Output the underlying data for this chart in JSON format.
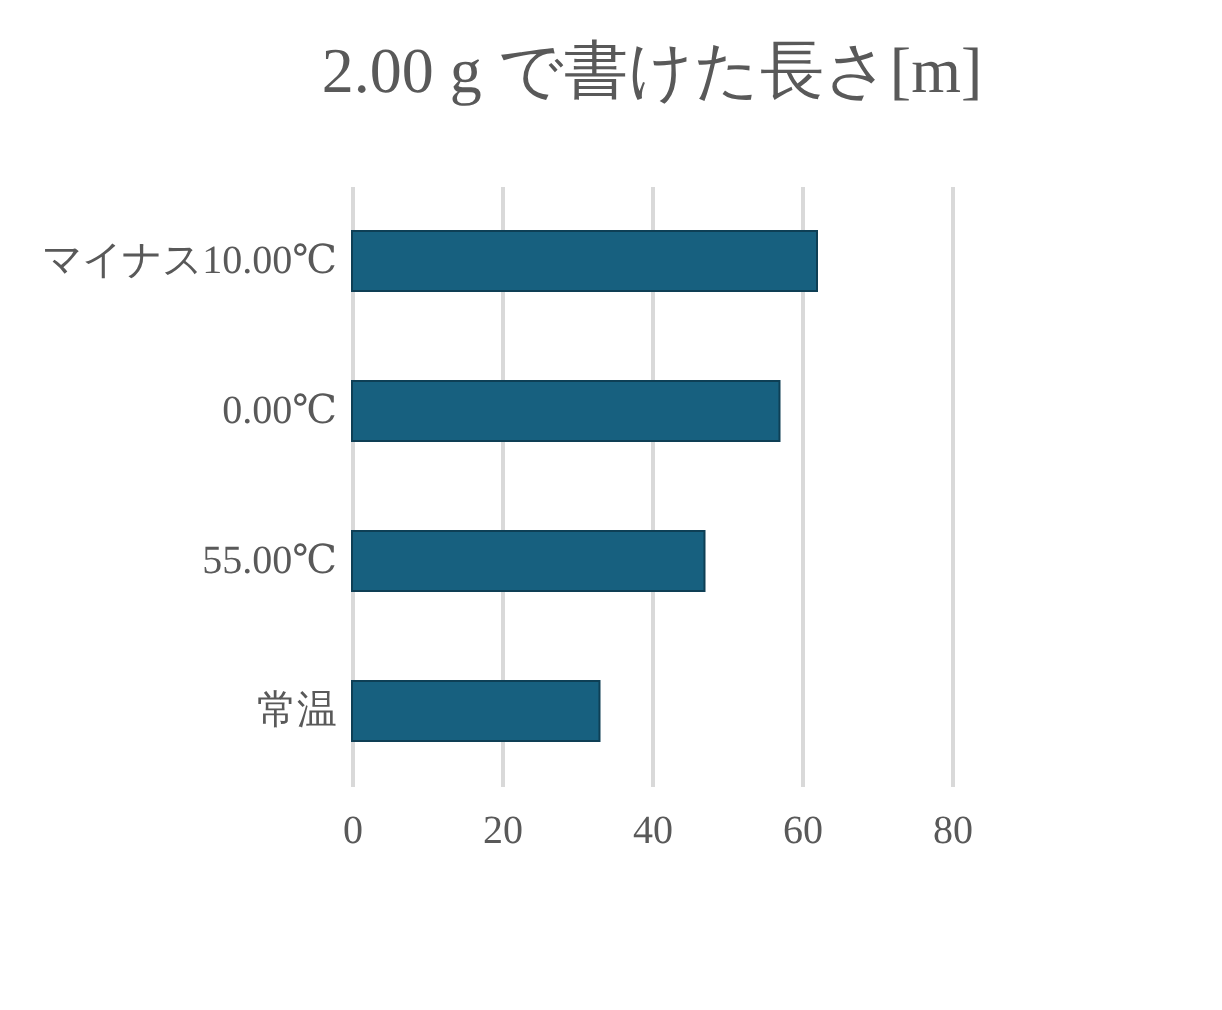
{
  "chart_data": {
    "type": "bar",
    "orientation": "horizontal",
    "title": "2.00 g で書けた長さ[m]",
    "categories": [
      "マイナス10.00℃",
      "0.00℃",
      "55.00℃",
      "常温"
    ],
    "values": [
      62,
      57,
      47,
      33
    ],
    "color": "#17607f",
    "xlim": [
      0,
      80
    ],
    "xticks": [
      0,
      20,
      40,
      60,
      80
    ],
    "grid": "x"
  }
}
